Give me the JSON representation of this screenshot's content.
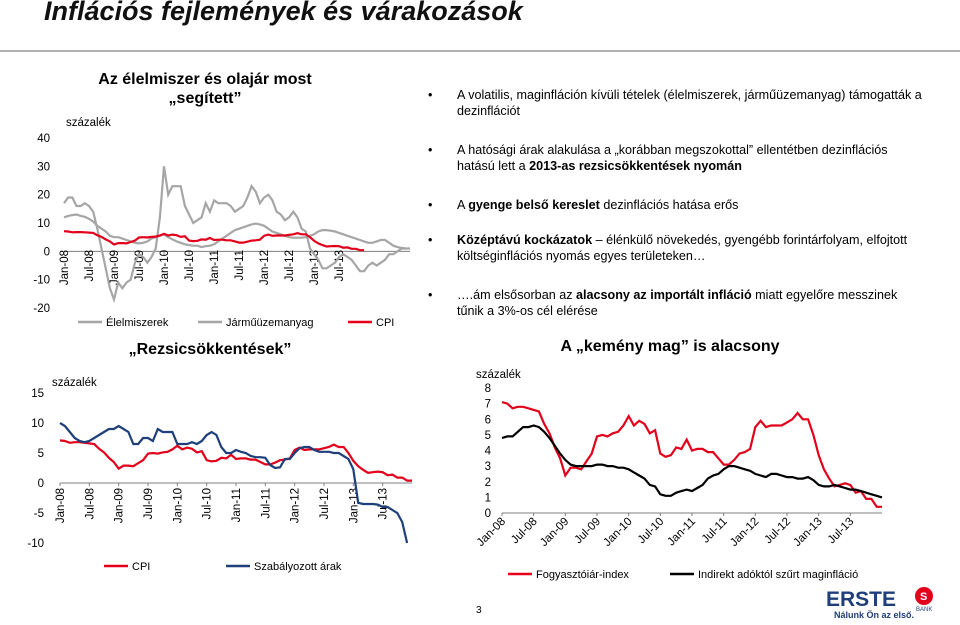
{
  "header": {
    "title": "Inflációs fejlemények és várakozások"
  },
  "bullets": [
    {
      "parts": [
        {
          "t": "A volatilis, maginfláción kívüli tételek (élelmiszerek, járműüzemanyag) támogatták a dezinflációt",
          "b": false
        }
      ]
    },
    {
      "parts": [
        {
          "t": "A hatósági árak alakulása a „korábban megszokottal” ellentétben dezinflációs hatású lett a ",
          "b": false
        },
        {
          "t": "2013-as rezsicsökkentések nyomán",
          "b": true
        }
      ]
    },
    {
      "parts": [
        {
          "t": "A ",
          "b": false
        },
        {
          "t": "gyenge belső kereslet",
          "b": true
        },
        {
          "t": " dezinflációs hatása erős",
          "b": false
        }
      ]
    },
    {
      "parts": [
        {
          "t": "Középtávú kockázatok",
          "b": true
        },
        {
          "t": " – élénkülő növekedés, gyengébb forintárfolyam, elfojtott költséginflációs nyomás egyes területeken…",
          "b": false
        }
      ]
    },
    {
      "parts": [
        {
          "t": "….ám elsősorban az ",
          "b": false
        },
        {
          "t": "alacsony az importált infláció",
          "b": true
        },
        {
          "t": " miatt egyelőre messzinek tűnik a 3%-os cél elérése",
          "b": false
        }
      ]
    }
  ],
  "page_number": "3",
  "logo": {
    "name": "ERSTE",
    "sub": "BANK",
    "slogan": "Nálunk Ön az első."
  },
  "colors": {
    "red": "#e2001a",
    "navy": "#1f3f7a",
    "gray": "#a6a6a6"
  },
  "chart_data": [
    {
      "type": "line",
      "title": "Az élelmiszer és olajár most „segített”",
      "ylabel": "százalék",
      "ylim": [
        -20,
        40
      ],
      "yticks": [
        -20,
        -10,
        0,
        10,
        20,
        30,
        40
      ],
      "tick_labels": [
        "Jan-08",
        "Jul-08",
        "Jan-09",
        "Jul-09",
        "Jan-10",
        "Jul-10",
        "Jan-11",
        "Jul-11",
        "Jan-12",
        "Jul-12",
        "Jan-13",
        "Jul-13"
      ],
      "x_start": "2008-01",
      "series": [
        {
          "name": "Élelmiszerek",
          "color": "#a6a6a6",
          "values": [
            12,
            12.5,
            12.8,
            13,
            12.5,
            12.2,
            11.5,
            10.5,
            9,
            8,
            7,
            5.5,
            5,
            5,
            4.5,
            4,
            3.5,
            3,
            2.8,
            3,
            3.5,
            4.5,
            5,
            5.5,
            6,
            5,
            4.2,
            3.5,
            3,
            2.5,
            2.2,
            2,
            2,
            1.5,
            1.8,
            2,
            2.5,
            3.5,
            4.5,
            5.5,
            6.5,
            7.5,
            8,
            8.5,
            9,
            9.5,
            9.8,
            9.5,
            9,
            8,
            7,
            6.5,
            6,
            5.5,
            5,
            4.8,
            4.8,
            4.8,
            5,
            5.5,
            6,
            7,
            7.5,
            7.5,
            7.3,
            7,
            6.5,
            6,
            5.5,
            5,
            4.5,
            4,
            3.5,
            3,
            3,
            3.5,
            4,
            4,
            3,
            2,
            1.5,
            1.2,
            1,
            1
          ]
        },
        {
          "name": "Járműüzemanyag",
          "color": "#a6a6a6",
          "values": [
            17,
            19,
            19,
            16,
            16,
            17,
            16,
            14,
            8,
            1,
            -6,
            -13,
            -17,
            -11,
            -13,
            -11,
            -10,
            -4,
            -1,
            -2,
            -4,
            -2,
            1,
            12,
            30,
            20,
            23,
            23,
            23,
            16,
            13,
            10,
            11,
            12,
            17,
            14,
            18,
            17,
            17,
            17,
            16,
            14,
            15,
            16,
            19,
            23,
            21,
            17,
            19,
            20,
            18,
            14,
            13,
            11,
            12,
            14,
            12,
            8,
            7,
            1,
            -1,
            -3,
            -6,
            -6,
            -5,
            -4,
            -2,
            -1,
            -2,
            -3,
            -5,
            -7,
            -7,
            -5,
            -4,
            -5,
            -4,
            -3,
            -1,
            -1,
            0,
            1,
            1
          ]
        },
        {
          "name": "CPI",
          "color": "#e2001a",
          "values": [
            7.1,
            7.0,
            6.7,
            6.8,
            6.8,
            6.7,
            6.6,
            6.5,
            5.7,
            5.1,
            4.2,
            3.5,
            2.4,
            2.9,
            2.9,
            2.8,
            3.3,
            3.8,
            4.9,
            5.0,
            4.9,
            5.1,
            5.2,
            5.6,
            6.2,
            5.6,
            5.9,
            5.7,
            5.1,
            5.3,
            3.8,
            3.6,
            3.7,
            4.2,
            4.1,
            4.7,
            4.0,
            4.1,
            4.1,
            3.9,
            3.9,
            3.5,
            3.1,
            3.1,
            3.4,
            3.8,
            3.9,
            4.1,
            5.5,
            5.9,
            5.5,
            5.6,
            5.6,
            5.6,
            5.8,
            6.0,
            6.4,
            6.0,
            6.0,
            5.0,
            3.7,
            2.8,
            2.2,
            1.7,
            1.8,
            1.9,
            1.8,
            1.3,
            1.4,
            0.9,
            0.9,
            0.4,
            0.4
          ]
        }
      ]
    },
    {
      "type": "line",
      "title": "„Rezsicsökkentések”",
      "ylabel": "százalék",
      "ylim": [
        -10,
        15
      ],
      "yticks": [
        -10,
        -5,
        0,
        5,
        10,
        15
      ],
      "tick_labels": [
        "Jan-08",
        "Jul-08",
        "Jan-09",
        "Jul-09",
        "Jan-10",
        "Jul-10",
        "Jan-11",
        "Jul-11",
        "Jan-12",
        "Jul-12",
        "Jan-13",
        "Jul-13"
      ],
      "x_start": "2008-01",
      "series": [
        {
          "name": "CPI",
          "color": "#e2001a",
          "values": [
            7.1,
            7.0,
            6.7,
            6.8,
            6.8,
            6.7,
            6.6,
            6.5,
            5.7,
            5.1,
            4.2,
            3.5,
            2.4,
            2.9,
            2.9,
            2.8,
            3.3,
            3.8,
            4.9,
            5.0,
            4.9,
            5.1,
            5.2,
            5.6,
            6.2,
            5.6,
            5.9,
            5.7,
            5.1,
            5.3,
            3.8,
            3.6,
            3.7,
            4.2,
            4.1,
            4.7,
            4.0,
            4.1,
            4.1,
            3.9,
            3.9,
            3.5,
            3.1,
            3.1,
            3.4,
            3.8,
            3.9,
            4.1,
            5.5,
            5.9,
            5.5,
            5.6,
            5.6,
            5.6,
            5.8,
            6.0,
            6.4,
            6.0,
            6.0,
            5.0,
            3.7,
            2.8,
            2.2,
            1.7,
            1.8,
            1.9,
            1.8,
            1.3,
            1.4,
            0.9,
            0.9,
            0.4,
            0.4
          ]
        },
        {
          "name": "Szabályozott árak",
          "color": "#1f3f7a",
          "values": [
            10,
            9.5,
            8.5,
            7.5,
            7,
            6.8,
            7,
            7.5,
            8,
            8.5,
            9,
            9,
            9.5,
            9,
            8.5,
            6.5,
            6.5,
            7.5,
            7.5,
            7,
            9,
            8.5,
            8.5,
            8.5,
            6.5,
            6.5,
            6.5,
            6.8,
            6.5,
            7,
            8,
            8.5,
            8,
            6,
            5,
            5,
            5.5,
            5.2,
            5,
            4.5,
            4.3,
            4.3,
            4.2,
            3,
            2.5,
            2.6,
            4,
            4,
            5,
            5.8,
            6,
            6,
            5.5,
            5.2,
            5.2,
            5.2,
            5,
            5,
            4.5,
            4,
            2.3,
            -3.3,
            -3.5,
            -3.5,
            -3.5,
            -3.6,
            -4,
            -4,
            -4.5,
            -5,
            -6.5,
            -10
          ]
        }
      ]
    },
    {
      "type": "line",
      "title": "A „kemény mag” is alacsony",
      "ylabel": "százalék",
      "ylim": [
        0,
        8
      ],
      "yticks": [
        0,
        1,
        2,
        3,
        4,
        5,
        6,
        7,
        8
      ],
      "tick_labels": [
        "Jan-08",
        "Jul-08",
        "Jan-09",
        "Jul-09",
        "Jan-10",
        "Jul-10",
        "Jan-11",
        "Jul-11",
        "Jan-12",
        "Jul-12",
        "Jan-13",
        "Jul-13"
      ],
      "x_start": "2008-01",
      "series": [
        {
          "name": "Fogyasztóiár-index",
          "color": "#e2001a",
          "values": [
            7.1,
            7.0,
            6.7,
            6.8,
            6.8,
            6.7,
            6.6,
            6.5,
            5.7,
            5.1,
            4.2,
            3.5,
            2.4,
            2.9,
            2.9,
            2.8,
            3.3,
            3.8,
            4.9,
            5.0,
            4.9,
            5.1,
            5.2,
            5.6,
            6.2,
            5.6,
            5.9,
            5.7,
            5.1,
            5.3,
            3.8,
            3.6,
            3.7,
            4.2,
            4.1,
            4.7,
            4.0,
            4.1,
            4.1,
            3.9,
            3.9,
            3.5,
            3.1,
            3.1,
            3.4,
            3.8,
            3.9,
            4.1,
            5.5,
            5.9,
            5.5,
            5.6,
            5.6,
            5.6,
            5.8,
            6.0,
            6.4,
            6.0,
            6.0,
            5.0,
            3.7,
            2.8,
            2.2,
            1.7,
            1.8,
            1.9,
            1.8,
            1.3,
            1.4,
            0.9,
            0.9,
            0.4,
            0.4
          ]
        },
        {
          "name": "Indirekt adóktól szűrt maginfláció",
          "color": "#000000",
          "values": [
            4.8,
            4.9,
            4.9,
            5.2,
            5.5,
            5.5,
            5.6,
            5.5,
            5.2,
            4.8,
            4.3,
            3.8,
            3.4,
            3.1,
            3.0,
            3.0,
            3.0,
            3.0,
            3.1,
            3.1,
            3.0,
            3.0,
            2.9,
            2.9,
            2.8,
            2.6,
            2.4,
            2.2,
            1.8,
            1.7,
            1.2,
            1.1,
            1.1,
            1.3,
            1.4,
            1.5,
            1.4,
            1.6,
            1.8,
            2.2,
            2.4,
            2.5,
            2.8,
            3.0,
            3.0,
            2.9,
            2.8,
            2.7,
            2.5,
            2.4,
            2.3,
            2.5,
            2.5,
            2.4,
            2.3,
            2.3,
            2.2,
            2.2,
            2.3,
            2.1,
            1.8,
            1.7,
            1.7,
            1.8,
            1.7,
            1.6,
            1.5,
            1.5,
            1.4,
            1.3,
            1.2,
            1.1,
            1.0
          ]
        }
      ]
    }
  ]
}
